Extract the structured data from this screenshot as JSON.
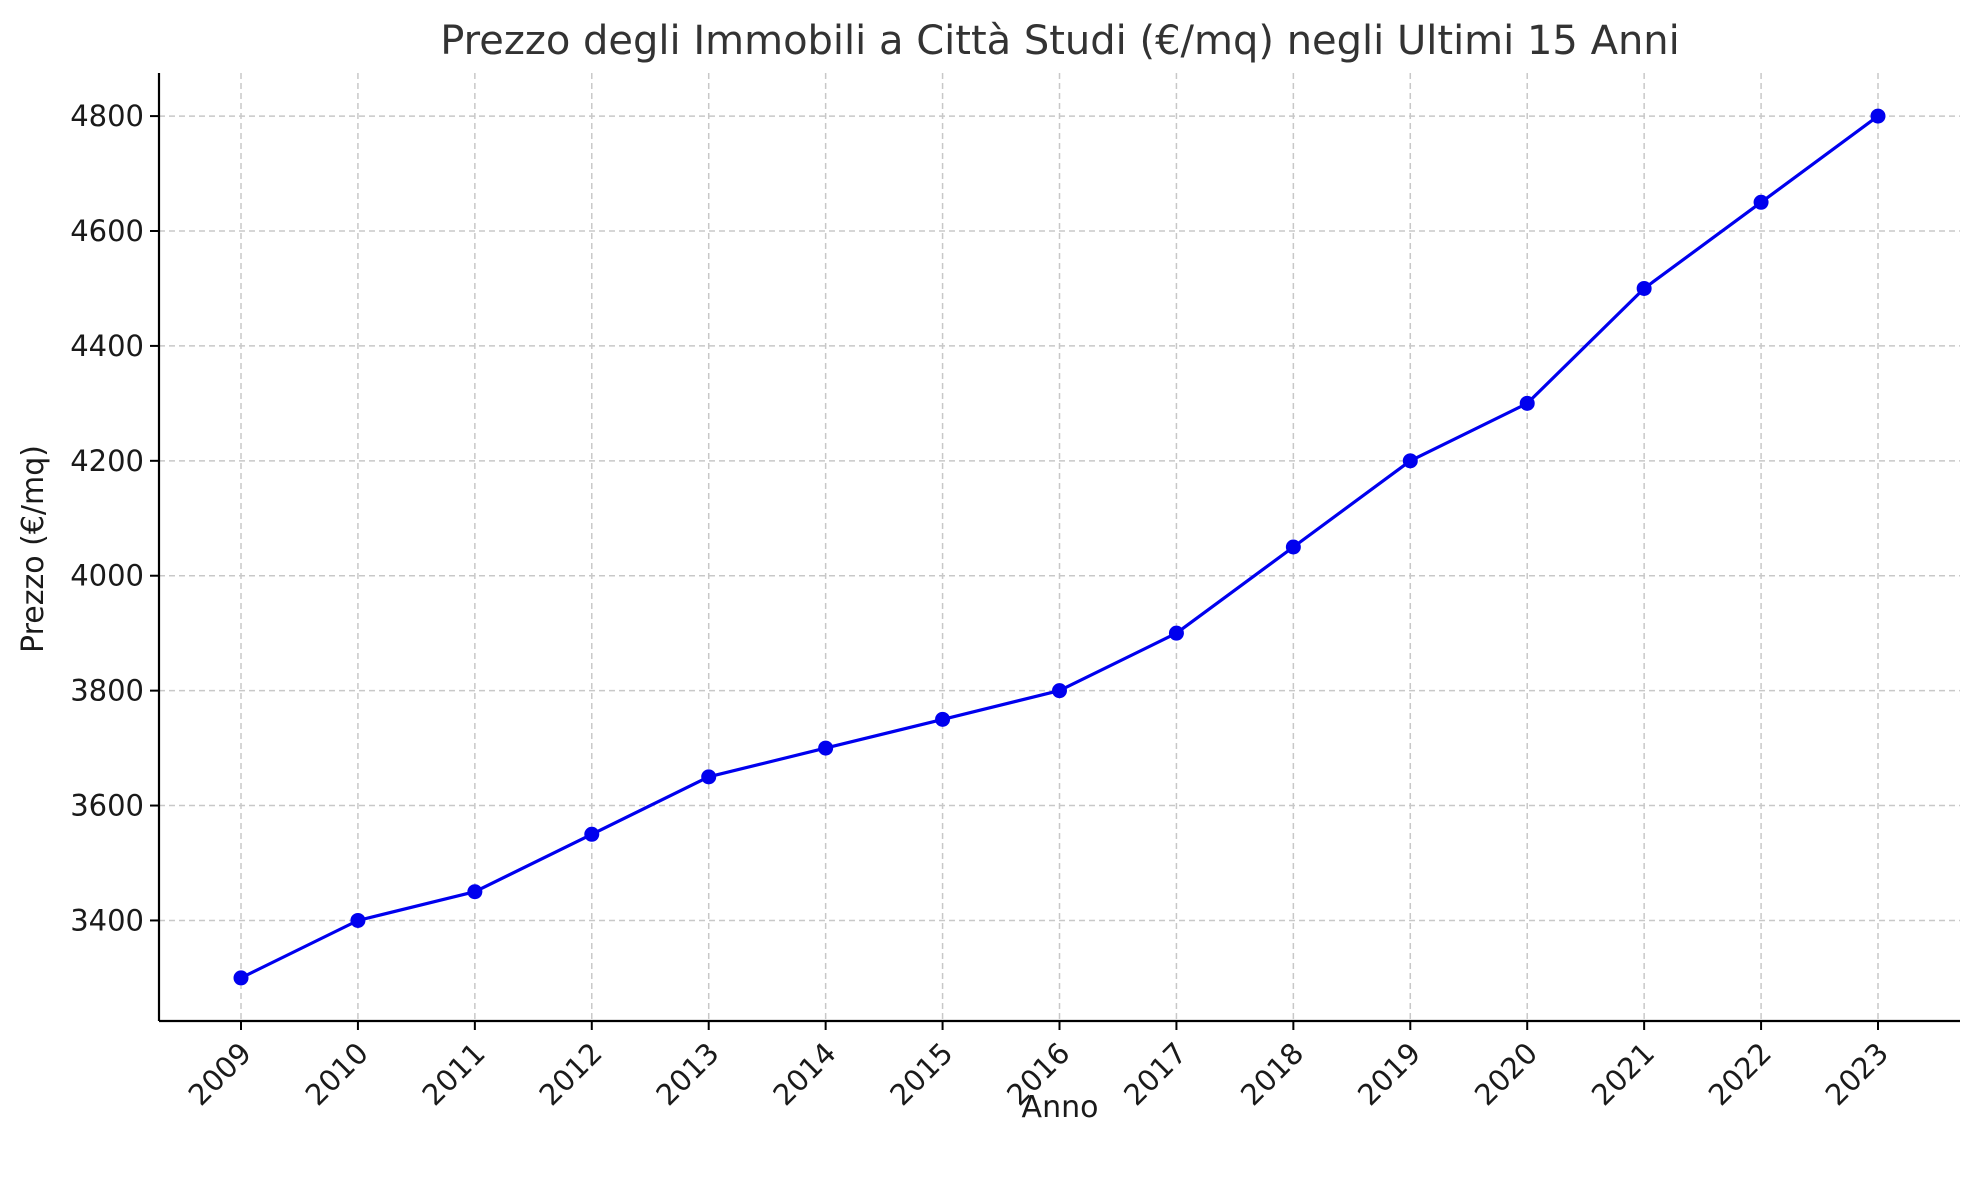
{
  "chart_data": {
    "type": "line",
    "title": "Prezzo degli Immobili a Città Studi (€/mq) negli Ultimi 15 Anni",
    "xlabel": "Anno",
    "ylabel": "Prezzo (€/mq)",
    "x": [
      "2009",
      "2010",
      "2011",
      "2012",
      "2013",
      "2014",
      "2015",
      "2016",
      "2017",
      "2018",
      "2019",
      "2020",
      "2021",
      "2022",
      "2023"
    ],
    "series": [
      {
        "values": [
          3300,
          3400,
          3450,
          3550,
          3650,
          3700,
          3750,
          3800,
          3900,
          4050,
          4200,
          4300,
          4500,
          4650,
          4800
        ],
        "color": "#0000ee",
        "marker": "circle"
      }
    ],
    "yticks": [
      3400,
      3600,
      3800,
      4000,
      4200,
      4400,
      4600,
      4800
    ],
    "ylim": [
      3225,
      4875
    ],
    "grid": true,
    "legend": "none"
  }
}
